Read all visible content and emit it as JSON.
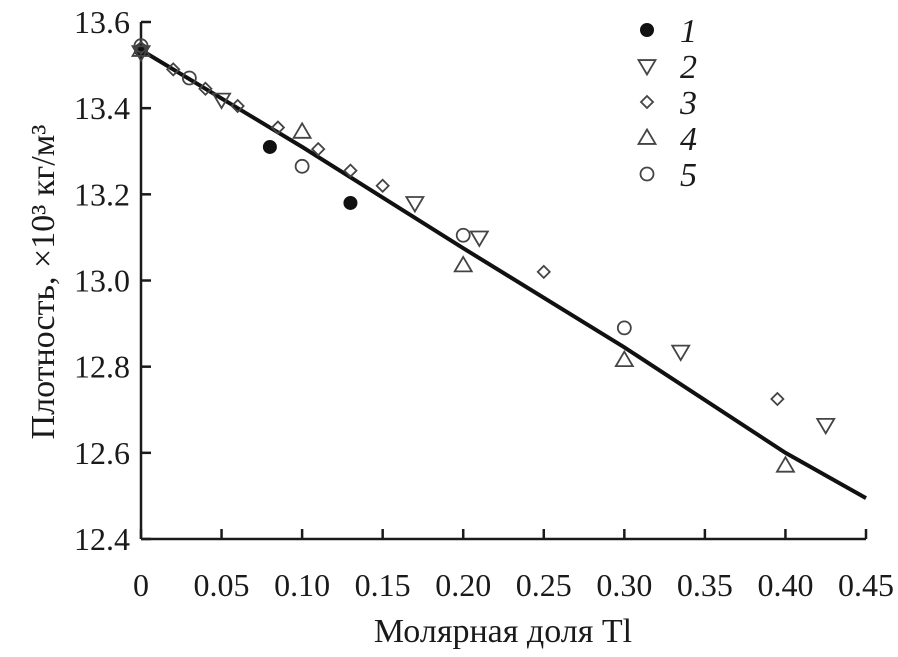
{
  "chart_data": {
    "type": "scatter",
    "xlabel": "Молярная доля Tl",
    "ylabel": "Плотность, ×10³ кг/м³",
    "xlim": [
      0,
      0.45
    ],
    "ylim": [
      12.4,
      13.6
    ],
    "x_ticks": [
      0,
      0.05,
      0.1,
      0.15,
      0.2,
      0.25,
      0.3,
      0.35,
      0.4,
      0.45
    ],
    "x_tick_labels": [
      "0",
      "0.05",
      "0.10",
      "0.15",
      "0.20",
      "0.25",
      "0.30",
      "0.35",
      "0.40",
      "0.45"
    ],
    "y_ticks": [
      12.4,
      12.6,
      12.8,
      13.0,
      13.2,
      13.4,
      13.6
    ],
    "y_tick_labels": [
      "12.4",
      "12.6",
      "12.8",
      "13.0",
      "13.2",
      "13.4",
      "13.6"
    ],
    "grid": false,
    "legend_position": "top-right",
    "series": [
      {
        "name": "1",
        "marker": "filled-circle",
        "x": [
          0,
          0.08,
          0.13
        ],
        "y": [
          13.535,
          13.31,
          13.18
        ]
      },
      {
        "name": "2",
        "marker": "triangle-down",
        "x": [
          0,
          0.05,
          0.17,
          0.21,
          0.335,
          0.425
        ],
        "y": [
          13.53,
          13.42,
          13.18,
          13.1,
          12.835,
          12.665
        ]
      },
      {
        "name": "3",
        "marker": "diamond",
        "x": [
          0,
          0.02,
          0.04,
          0.06,
          0.085,
          0.11,
          0.13,
          0.15,
          0.25,
          0.395
        ],
        "y": [
          13.54,
          13.49,
          13.445,
          13.405,
          13.355,
          13.305,
          13.255,
          13.22,
          13.02,
          12.725
        ]
      },
      {
        "name": "4",
        "marker": "triangle-up",
        "x": [
          0,
          0.1,
          0.2,
          0.3,
          0.4
        ],
        "y": [
          13.535,
          13.345,
          13.035,
          12.815,
          12.57
        ]
      },
      {
        "name": "5",
        "marker": "open-circle",
        "x": [
          0,
          0.03,
          0.1,
          0.2,
          0.3
        ],
        "y": [
          13.545,
          13.47,
          13.265,
          13.105,
          12.89
        ]
      }
    ],
    "fit_line": {
      "x": [
        0,
        0.1,
        0.2,
        0.3,
        0.4,
        0.45
      ],
      "y": [
        13.535,
        13.31,
        13.075,
        12.845,
        12.6,
        12.495
      ]
    }
  }
}
